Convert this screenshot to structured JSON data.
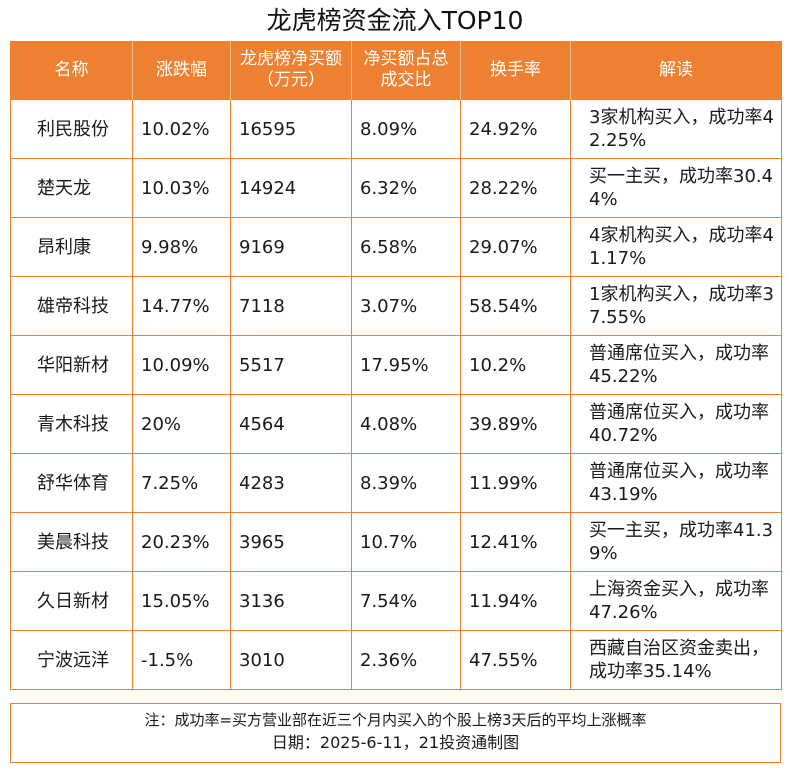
{
  "title": "龙虎榜资金流入TOP10",
  "table": {
    "headers": [
      "名称",
      "涨跌幅",
      "龙虎榜净买额（万元）",
      "净买额占总成交比",
      "换手率",
      "解读"
    ],
    "rows": [
      {
        "name": "利民股份",
        "change": "10.02%",
        "net_buy": "16595",
        "ratio": "8.09%",
        "turnover": "24.92%",
        "note": "3家机构买入，成功率42.25%"
      },
      {
        "name": "楚天龙",
        "change": "10.03%",
        "net_buy": "14924",
        "ratio": "6.32%",
        "turnover": "28.22%",
        "note": "买一主买，成功率30.44%"
      },
      {
        "name": "昂利康",
        "change": "9.98%",
        "net_buy": "9169",
        "ratio": "6.58%",
        "turnover": "29.07%",
        "note": "4家机构买入，成功率41.17%"
      },
      {
        "name": "雄帝科技",
        "change": "14.77%",
        "net_buy": "7118",
        "ratio": "3.07%",
        "turnover": "58.54%",
        "note": "1家机构买入，成功率37.55%"
      },
      {
        "name": "华阳新材",
        "change": "10.09%",
        "net_buy": "5517",
        "ratio": "17.95%",
        "turnover": "10.2%",
        "note": "普通席位买入，成功率45.22%"
      },
      {
        "name": "青木科技",
        "change": "20%",
        "net_buy": "4564",
        "ratio": "4.08%",
        "turnover": "39.89%",
        "note": "普通席位买入，成功率40.72%"
      },
      {
        "name": "舒华体育",
        "change": "7.25%",
        "net_buy": "4283",
        "ratio": "8.39%",
        "turnover": "11.99%",
        "note": "普通席位买入，成功率43.19%"
      },
      {
        "name": "美晨科技",
        "change": "20.23%",
        "net_buy": "3965",
        "ratio": "10.7%",
        "turnover": "12.41%",
        "note": "买一主买，成功率41.39%"
      },
      {
        "name": "久日新材",
        "change": "15.05%",
        "net_buy": "3136",
        "ratio": "7.54%",
        "turnover": "11.94%",
        "note": "上海资金买入，成功率47.26%"
      },
      {
        "name": "宁波远洋",
        "change": "-1.5%",
        "net_buy": "3010",
        "ratio": "2.36%",
        "turnover": "47.55%",
        "note": "西藏自治区资金卖出，成功率35.14%"
      }
    ]
  },
  "footnote": "注：成功率=买方营业部在近三个月内买入的个股上榜3天后的平均上涨概率",
  "dateline": "日期：2025-6-11，21投资通制图",
  "colors": {
    "accent": "#ee8032",
    "header_text": "#ffffff"
  }
}
